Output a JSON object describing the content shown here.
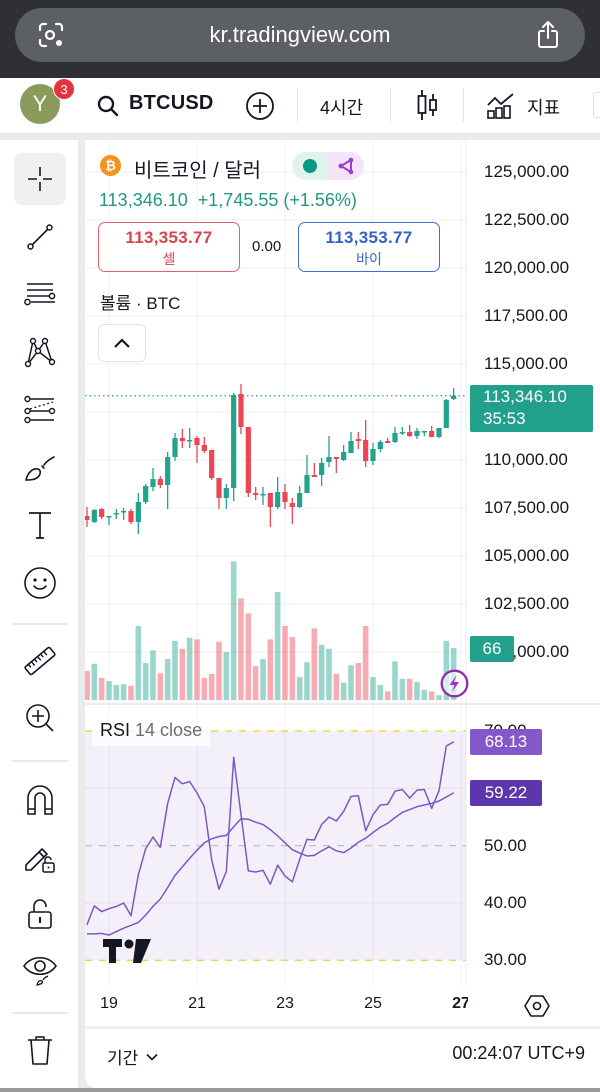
{
  "browser": {
    "url": "kr.tradingview.com"
  },
  "header": {
    "avatar_initial": "Y",
    "notification_count": "3",
    "symbol": "BTCUSD",
    "interval": "4시간",
    "indicators_label": "지표"
  },
  "sidebar": {
    "tools": [
      "crosshair",
      "trend-line",
      "fib-retracement",
      "xabcd-pattern",
      "forecast",
      "brush",
      "text",
      "emoji",
      "ruler",
      "zoom-in",
      "magnet",
      "lock-drawings",
      "lock-all",
      "hide-drawings",
      "delete"
    ]
  },
  "legend": {
    "coin_glyph": "₿",
    "title": "비트코인 / 달러",
    "last_price": "113,346.10",
    "change": "+1,745.55",
    "change_pct": "(+1.56%)",
    "sell_price": "113,353.77",
    "sell_label": "셀",
    "spread": "0.00",
    "buy_price": "113,353.77",
    "buy_label": "바이",
    "volume_label": "볼륨 · BTC"
  },
  "price_axis": {
    "last_price": "113,346.10",
    "countdown": "35:53",
    "volume_badge": "66"
  },
  "rsi": {
    "name": "RSI",
    "params": "14 close",
    "value": "68.13",
    "ma_value": "59.22"
  },
  "footer": {
    "range_label": "기간",
    "clock": "00:24:07 UTC+9"
  },
  "colors": {
    "up": "#22a38e",
    "down": "#eb4654",
    "vol_up": "rgba(34,163,142,0.45)",
    "vol_down": "rgba(235,70,84,0.45)",
    "rsi": "#7e57c2",
    "rsi_band": "rgba(126,87,194,0.09)",
    "grid": "#f0f2f6",
    "last_line": "#21a08b"
  },
  "chart_data": {
    "type": "candlestick",
    "title": "비트코인 / 달러",
    "symbol": "BTCUSD",
    "interval": "4시간",
    "price_ylim": [
      97344,
      126667
    ],
    "y_ticks": [
      {
        "value": 125000,
        "label": "125,000.00"
      },
      {
        "value": 122500,
        "label": "122,500.00"
      },
      {
        "value": 120000,
        "label": "120,000.00"
      },
      {
        "value": 117500,
        "label": "117,500.00"
      },
      {
        "value": 115000,
        "label": "115,000.00"
      },
      {
        "value": 110000,
        "label": "110,000.00"
      },
      {
        "value": 107500,
        "label": "107,500.00"
      },
      {
        "value": 105000,
        "label": "105,000.00"
      },
      {
        "value": 102500,
        "label": "102,500.00"
      },
      {
        "value": 100000,
        "label": "100,000.00"
      }
    ],
    "x_ticks": [
      {
        "index": 3,
        "label": "19"
      },
      {
        "index": 15,
        "label": "21"
      },
      {
        "index": 27,
        "label": "23"
      },
      {
        "index": 39,
        "label": "25"
      },
      {
        "index": 51,
        "label": "27",
        "bold": true
      }
    ],
    "candles_ohlc": [
      [
        107083,
        107552,
        106510,
        106875
      ],
      [
        106771,
        107448,
        106719,
        107396
      ],
      [
        107448,
        107500,
        106927,
        107031
      ],
      [
        107060,
        107083,
        106615,
        107083
      ],
      [
        107210,
        107448,
        106927,
        107240
      ],
      [
        107320,
        107500,
        106875,
        107344
      ],
      [
        107344,
        107448,
        106667,
        106771
      ],
      [
        106771,
        108281,
        106146,
        107813
      ],
      [
        107813,
        108750,
        107708,
        108646
      ],
      [
        108594,
        109583,
        108385,
        109010
      ],
      [
        109010,
        109167,
        108542,
        108698
      ],
      [
        108698,
        110417,
        107448,
        110156
      ],
      [
        110156,
        111406,
        109948,
        111146
      ],
      [
        111146,
        111615,
        110625,
        110990
      ],
      [
        110990,
        111667,
        110625,
        111042
      ],
      [
        111146,
        111250,
        109844,
        110781
      ],
      [
        110781,
        111198,
        110365,
        110469
      ],
      [
        110521,
        110521,
        108958,
        109063
      ],
      [
        109063,
        109063,
        107448,
        108021
      ],
      [
        108021,
        108750,
        107448,
        108542
      ],
      [
        108542,
        113490,
        107865,
        113385
      ],
      [
        113438,
        113958,
        111354,
        111719
      ],
      [
        111719,
        111719,
        108073,
        108281
      ],
      [
        108281,
        108594,
        107917,
        108177
      ],
      [
        108200,
        108594,
        107656,
        108229
      ],
      [
        108281,
        108281,
        106510,
        107552
      ],
      [
        107552,
        109115,
        107448,
        108333
      ],
      [
        108333,
        108750,
        107448,
        107813
      ],
      [
        107760,
        108021,
        106667,
        107552
      ],
      [
        107552,
        108646,
        107500,
        108281
      ],
      [
        108281,
        110260,
        108281,
        109219
      ],
      [
        109219,
        109844,
        109115,
        109115
      ],
      [
        109219,
        110104,
        108646,
        109844
      ],
      [
        109896,
        111250,
        109635,
        110156
      ],
      [
        110156,
        110156,
        109323,
        110052
      ],
      [
        110000,
        110781,
        109948,
        110417
      ],
      [
        110365,
        111458,
        110365,
        110990
      ],
      [
        111094,
        111458,
        110573,
        110990
      ],
      [
        111042,
        112083,
        109635,
        109948
      ],
      [
        109948,
        110885,
        109740,
        110573
      ],
      [
        110573,
        111042,
        110417,
        110938
      ],
      [
        110990,
        111146,
        110885,
        110885
      ],
      [
        110938,
        111719,
        110885,
        111406
      ],
      [
        111430,
        111719,
        111302,
        111458
      ],
      [
        111458,
        111823,
        111198,
        111250
      ],
      [
        111250,
        111667,
        111094,
        111510
      ],
      [
        111485,
        111510,
        111250,
        111510
      ],
      [
        111510,
        111771,
        111198,
        111198
      ],
      [
        111198,
        111667,
        111146,
        111667
      ],
      [
        111667,
        113177,
        111667,
        113125
      ],
      [
        113177,
        113750,
        113125,
        113346.1
      ]
    ],
    "last_price": 113346.1,
    "volume_scale_max": 711,
    "volume": [
      37,
      46,
      28,
      24,
      19,
      20,
      18,
      94,
      47,
      63,
      34,
      52,
      75,
      65,
      79,
      77,
      28,
      33,
      74,
      61,
      176,
      129,
      110,
      43,
      52,
      77,
      137,
      94,
      80,
      29,
      48,
      91,
      70,
      65,
      33,
      22,
      44,
      47,
      94,
      29,
      19,
      11,
      49,
      27,
      27,
      23,
      13,
      11,
      6,
      75,
      66
    ],
    "rsi_ylim": [
      25.69,
      74.55
    ],
    "rsi_levels": {
      "upper": 70,
      "middle": 50,
      "lower": 30
    },
    "rsi_ticks": [
      {
        "value": 70,
        "label": "70.00"
      },
      {
        "value": 50,
        "label": "50.00"
      },
      {
        "value": 40,
        "label": "40.00"
      },
      {
        "value": 30,
        "label": "30.00"
      }
    ],
    "rsi": [
      36.2,
      39.5,
      38.5,
      39.0,
      39.4,
      40.0,
      37.8,
      44.9,
      49.5,
      51.5,
      49.7,
      57.4,
      61.9,
      60.8,
      61.2,
      59.2,
      56.8,
      47.5,
      42.4,
      45.5,
      65.4,
      55.4,
      45.6,
      45.4,
      45.7,
      43.3,
      46.6,
      44.7,
      43.7,
      47.6,
      51.1,
      51.0,
      53.7,
      55.0,
      54.3,
      56.0,
      58.6,
      58.7,
      52.6,
      55.4,
      57.1,
      57.2,
      59.5,
      59.8,
      58.3,
      59.7,
      59.8,
      56.5,
      59.6,
      67.4,
      68.13
    ],
    "rsi_ma": [
      34.6,
      34.6,
      34.7,
      34.4,
      35.0,
      35.6,
      36.1,
      36.6,
      37.9,
      39.4,
      40.7,
      42.7,
      44.8,
      46.3,
      47.8,
      49.2,
      50.5,
      51.2,
      51.6,
      51.8,
      53.3,
      54.7,
      54.6,
      54.1,
      53.7,
      52.8,
      51.7,
      50.5,
      49.3,
      48.7,
      48.2,
      48.3,
      49.1,
      49.8,
      49.1,
      48.8,
      49.6,
      50.6,
      51.3,
      52.3,
      53.2,
      53.9,
      54.9,
      55.8,
      56.3,
      56.8,
      57.1,
      57.4,
      57.8,
      58.5,
      59.22
    ]
  }
}
